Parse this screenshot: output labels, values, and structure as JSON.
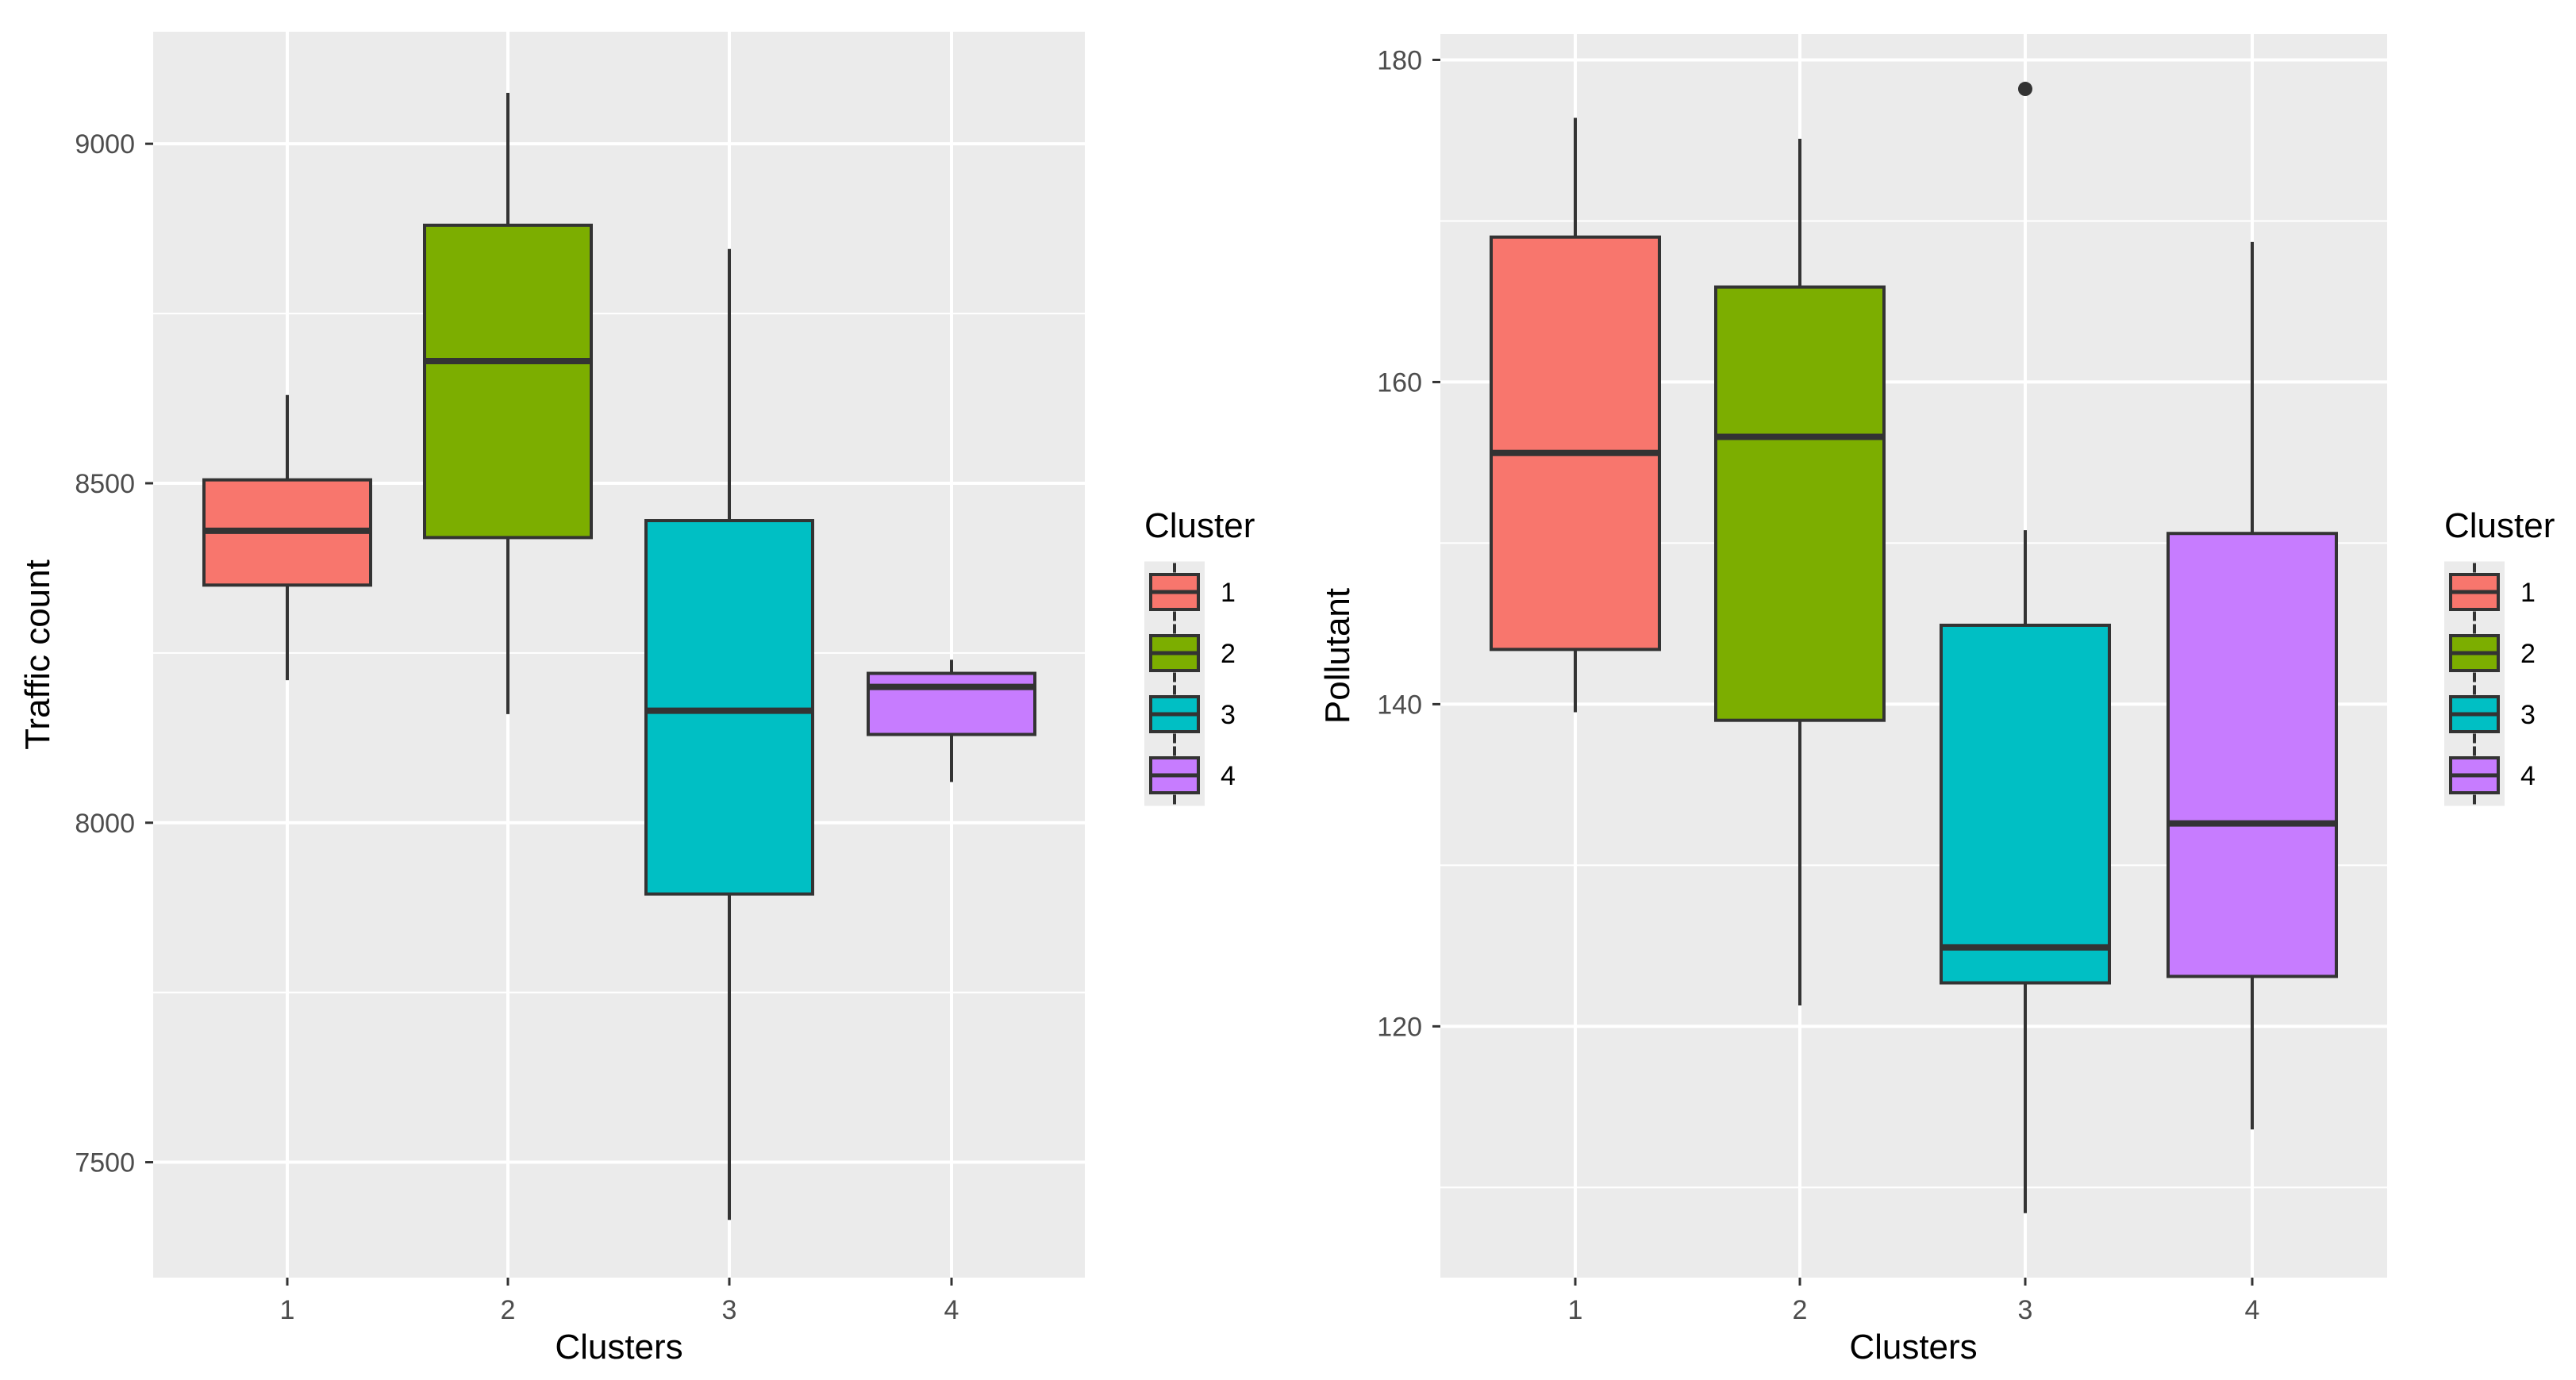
{
  "chart_data": [
    {
      "type": "boxplot",
      "xlabel": "Clusters",
      "ylabel": "Traffic count",
      "categories": [
        "1",
        "2",
        "3",
        "4"
      ],
      "ylim": [
        7330,
        9165
      ],
      "yticks": [
        7500,
        8000,
        8500,
        9000
      ],
      "yticks_labels": [
        "7500",
        "8000",
        "8500",
        "9000"
      ],
      "boxes": [
        {
          "cluster": "1",
          "lower_whisker": 8210,
          "q1": 8350,
          "median": 8430,
          "q3": 8505,
          "upper_whisker": 8630,
          "outliers": []
        },
        {
          "cluster": "2",
          "lower_whisker": 8160,
          "q1": 8420,
          "median": 8680,
          "q3": 8880,
          "upper_whisker": 9075,
          "outliers": []
        },
        {
          "cluster": "3",
          "lower_whisker": 7415,
          "q1": 7895,
          "median": 8165,
          "q3": 8445,
          "upper_whisker": 8845,
          "outliers": []
        },
        {
          "cluster": "4",
          "lower_whisker": 8060,
          "q1": 8130,
          "median": 8200,
          "q3": 8220,
          "upper_whisker": 8240,
          "outliers": []
        }
      ],
      "legend": {
        "title": "Cluster",
        "entries": [
          "1",
          "2",
          "3",
          "4"
        ]
      }
    },
    {
      "type": "boxplot",
      "xlabel": "Clusters",
      "ylabel": "Pollutant",
      "categories": [
        "1",
        "2",
        "3",
        "4"
      ],
      "ylim": [
        104.4,
        181.6
      ],
      "yticks": [
        120,
        140,
        160,
        180
      ],
      "yticks_labels": [
        "120",
        "140",
        "160",
        "180"
      ],
      "boxes": [
        {
          "cluster": "1",
          "lower_whisker": 139.5,
          "q1": 143.4,
          "median": 155.6,
          "q3": 169.0,
          "upper_whisker": 176.4,
          "outliers": []
        },
        {
          "cluster": "2",
          "lower_whisker": 121.3,
          "q1": 139.0,
          "median": 156.6,
          "q3": 165.9,
          "upper_whisker": 175.1,
          "outliers": []
        },
        {
          "cluster": "3",
          "lower_whisker": 108.4,
          "q1": 122.7,
          "median": 124.9,
          "q3": 144.9,
          "upper_whisker": 150.8,
          "outliers": [
            178.2
          ]
        },
        {
          "cluster": "4",
          "lower_whisker": 113.6,
          "q1": 123.1,
          "median": 132.6,
          "q3": 150.6,
          "upper_whisker": 168.7,
          "outliers": []
        }
      ],
      "legend": {
        "title": "Cluster",
        "entries": [
          "1",
          "2",
          "3",
          "4"
        ]
      }
    }
  ],
  "colors": {
    "panel_bg": "#ebebeb",
    "grid": "#ffffff",
    "box_outline": "#333333",
    "cluster_fills": [
      "#f8766d",
      "#7cae00",
      "#00bfc4",
      "#c77cff"
    ]
  }
}
